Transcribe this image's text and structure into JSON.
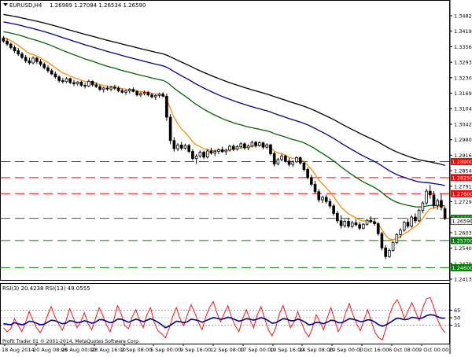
{
  "header": {
    "symbol": "EURUSD,H4",
    "ohlc": "1.26989 1.27084 1.26534 1.26590"
  },
  "rsi_header": {
    "text": "RSI(3) 20.4238  RSI(13) 49.0555"
  },
  "watermark": "Profit Trader 01 © 2001-2014, MetaQuotes Software Corp.",
  "colors": {
    "candle": "#000000",
    "ma_fast": "#FF8C00",
    "ma_mid": "#006400",
    "ma_slow": "#00008B",
    "ma_slowest": "#000000",
    "resistance": "#FF0000",
    "support": "#008000",
    "rsi_fast": "#FF0000",
    "rsi_slow": "#00008B",
    "grid": "#C0C0C0"
  },
  "chart_data": {
    "type": "candlestick",
    "symbol": "EURUSD",
    "timeframe": "H4",
    "ylim": [
      1.24135,
      1.35
    ],
    "price_ticks": [
      "1.34825",
      "1.34190",
      "1.33565",
      "1.32930",
      "1.32300",
      "1.31690",
      "1.31040",
      "1.30425",
      "1.29800",
      "1.29160",
      "1.28540",
      "1.27910",
      "1.27295",
      "1.26660",
      "1.26035",
      "1.25405",
      "1.24790",
      "1.24135"
    ],
    "x_ticks": [
      "18 Aug 2014",
      "20 Aug 08:00",
      "26 Aug 00:00",
      "28 Aug 16:00",
      "2 Sep 08:00",
      "5 Sep 00:00",
      "9 Sep 16:00",
      "12 Sep 08:00",
      "17 Sep 00:00",
      "19 Sep 16:00",
      "24 Sep 08:00",
      "29 Sep 00:00",
      "1 Oct 16:00",
      "6 Oct 08:00",
      "9 Oct 00:00"
    ],
    "horizontal_levels": [
      {
        "price": 1.289,
        "label": "1.28900",
        "color": "#FF0000"
      },
      {
        "price": 1.2825,
        "label": "1.28250",
        "color": "#FF0000"
      },
      {
        "price": 1.276,
        "label": "1.27600",
        "color": "#FF0000"
      },
      {
        "price": 1.266,
        "label": "1.26600",
        "color": "#008000"
      },
      {
        "price": 1.257,
        "label": "1.25700",
        "color": "#008000"
      },
      {
        "price": 1.246,
        "label": "1.24600",
        "color": "#008000"
      }
    ],
    "current_price": {
      "value": 1.2659,
      "label": "1.26590"
    },
    "candles": [
      [
        1.339,
        1.3399,
        1.3371,
        1.3378
      ],
      [
        1.3378,
        1.3389,
        1.3358,
        1.3366
      ],
      [
        1.3366,
        1.3372,
        1.3344,
        1.3352
      ],
      [
        1.3352,
        1.3361,
        1.333,
        1.3339
      ],
      [
        1.3339,
        1.335,
        1.3318,
        1.3326
      ],
      [
        1.3326,
        1.3334,
        1.3305,
        1.3312
      ],
      [
        1.3312,
        1.3322,
        1.329,
        1.3298
      ],
      [
        1.3298,
        1.3311,
        1.3282,
        1.329
      ],
      [
        1.329,
        1.3317,
        1.3284,
        1.3309
      ],
      [
        1.3309,
        1.3314,
        1.3286,
        1.3295
      ],
      [
        1.3295,
        1.3305,
        1.3276,
        1.3284
      ],
      [
        1.3284,
        1.3292,
        1.3263,
        1.327
      ],
      [
        1.327,
        1.328,
        1.325,
        1.3258
      ],
      [
        1.3258,
        1.3266,
        1.324,
        1.3245
      ],
      [
        1.3245,
        1.3254,
        1.3226,
        1.3233
      ],
      [
        1.3233,
        1.324,
        1.321,
        1.3218
      ],
      [
        1.3218,
        1.3229,
        1.3206,
        1.3214
      ],
      [
        1.3214,
        1.3232,
        1.3208,
        1.3226
      ],
      [
        1.3226,
        1.323,
        1.3204,
        1.321
      ],
      [
        1.321,
        1.3221,
        1.3196,
        1.3205
      ],
      [
        1.3205,
        1.3216,
        1.3198,
        1.3212
      ],
      [
        1.3212,
        1.3217,
        1.3193,
        1.3199
      ],
      [
        1.3199,
        1.3209,
        1.3186,
        1.3196
      ],
      [
        1.3196,
        1.3222,
        1.3192,
        1.3215
      ],
      [
        1.3215,
        1.3219,
        1.3194,
        1.3201
      ],
      [
        1.3201,
        1.321,
        1.3188,
        1.3194
      ],
      [
        1.3194,
        1.3201,
        1.3176,
        1.3182
      ],
      [
        1.3182,
        1.3193,
        1.317,
        1.3188
      ],
      [
        1.3188,
        1.3198,
        1.3176,
        1.3184
      ],
      [
        1.3184,
        1.3196,
        1.3175,
        1.3191
      ],
      [
        1.3191,
        1.3201,
        1.318,
        1.3187
      ],
      [
        1.3187,
        1.3195,
        1.3171,
        1.3177
      ],
      [
        1.3177,
        1.3186,
        1.3165,
        1.3171
      ],
      [
        1.3171,
        1.3182,
        1.316,
        1.3176
      ],
      [
        1.3176,
        1.3188,
        1.3166,
        1.3182
      ],
      [
        1.3182,
        1.319,
        1.317,
        1.3174
      ],
      [
        1.3174,
        1.318,
        1.3154,
        1.316
      ],
      [
        1.316,
        1.3172,
        1.3151,
        1.3166
      ],
      [
        1.3166,
        1.3178,
        1.3158,
        1.317
      ],
      [
        1.317,
        1.3176,
        1.3154,
        1.316
      ],
      [
        1.316,
        1.3168,
        1.3146,
        1.3152
      ],
      [
        1.3152,
        1.3163,
        1.314,
        1.3157
      ],
      [
        1.3157,
        1.3168,
        1.3148,
        1.3163
      ],
      [
        1.3163,
        1.3171,
        1.315,
        1.3155
      ],
      [
        1.3155,
        1.3165,
        1.3055,
        1.307
      ],
      [
        1.307,
        1.3082,
        1.296,
        1.2975
      ],
      [
        1.2975,
        1.2988,
        1.293,
        1.2942
      ],
      [
        1.2942,
        1.2965,
        1.2932,
        1.2957
      ],
      [
        1.2957,
        1.297,
        1.2935,
        1.2944
      ],
      [
        1.2944,
        1.2962,
        1.2938,
        1.2955
      ],
      [
        1.2955,
        1.2961,
        1.2925,
        1.2931
      ],
      [
        1.2931,
        1.294,
        1.2895,
        1.2902
      ],
      [
        1.2902,
        1.292,
        1.288,
        1.2912
      ],
      [
        1.2912,
        1.2935,
        1.2905,
        1.2928
      ],
      [
        1.2928,
        1.2934,
        1.29,
        1.2908
      ],
      [
        1.2908,
        1.294,
        1.2902,
        1.2933
      ],
      [
        1.2933,
        1.2946,
        1.2918,
        1.2924
      ],
      [
        1.2924,
        1.2938,
        1.2912,
        1.2931
      ],
      [
        1.2931,
        1.2944,
        1.292,
        1.2938
      ],
      [
        1.2938,
        1.295,
        1.2925,
        1.293
      ],
      [
        1.293,
        1.2942,
        1.2917,
        1.2936
      ],
      [
        1.2936,
        1.2958,
        1.293,
        1.2952
      ],
      [
        1.2952,
        1.296,
        1.2932,
        1.294
      ],
      [
        1.294,
        1.2957,
        1.2934,
        1.295
      ],
      [
        1.295,
        1.2969,
        1.2942,
        1.2962
      ],
      [
        1.2962,
        1.2968,
        1.2938,
        1.2946
      ],
      [
        1.2946,
        1.296,
        1.2936,
        1.2953
      ],
      [
        1.2953,
        1.2975,
        1.2947,
        1.2968
      ],
      [
        1.2968,
        1.2974,
        1.2947,
        1.2955
      ],
      [
        1.2955,
        1.2972,
        1.295,
        1.2966
      ],
      [
        1.2966,
        1.297,
        1.294,
        1.2948
      ],
      [
        1.2948,
        1.2964,
        1.2942,
        1.2958
      ],
      [
        1.2958,
        1.2961,
        1.2915,
        1.2922
      ],
      [
        1.2922,
        1.293,
        1.287,
        1.288
      ],
      [
        1.288,
        1.2905,
        1.2875,
        1.2898
      ],
      [
        1.2898,
        1.292,
        1.289,
        1.2912
      ],
      [
        1.2912,
        1.2918,
        1.2885,
        1.2892
      ],
      [
        1.2892,
        1.2905,
        1.287,
        1.2878
      ],
      [
        1.2878,
        1.2895,
        1.2868,
        1.2889
      ],
      [
        1.2889,
        1.2912,
        1.2884,
        1.2906
      ],
      [
        1.2906,
        1.291,
        1.2878,
        1.2884
      ],
      [
        1.2884,
        1.289,
        1.285,
        1.2858
      ],
      [
        1.2858,
        1.2866,
        1.2818,
        1.2825
      ],
      [
        1.2825,
        1.2836,
        1.279,
        1.2798
      ],
      [
        1.2798,
        1.2812,
        1.276,
        1.2768
      ],
      [
        1.2768,
        1.2778,
        1.2725,
        1.2735
      ],
      [
        1.2735,
        1.2752,
        1.2722,
        1.2745
      ],
      [
        1.2745,
        1.2756,
        1.272,
        1.2728
      ],
      [
        1.2728,
        1.274,
        1.27,
        1.271
      ],
      [
        1.271,
        1.2718,
        1.267,
        1.268
      ],
      [
        1.268,
        1.269,
        1.264,
        1.265
      ],
      [
        1.265,
        1.2672,
        1.2618,
        1.263
      ],
      [
        1.263,
        1.2655,
        1.2622,
        1.2648
      ],
      [
        1.2648,
        1.266,
        1.262,
        1.2628
      ],
      [
        1.2628,
        1.265,
        1.262,
        1.2642
      ],
      [
        1.2642,
        1.2655,
        1.2628,
        1.2634
      ],
      [
        1.2634,
        1.2645,
        1.2612,
        1.262
      ],
      [
        1.262,
        1.264,
        1.2615,
        1.2636
      ],
      [
        1.2636,
        1.2658,
        1.263,
        1.2652
      ],
      [
        1.2652,
        1.2668,
        1.264,
        1.2646
      ],
      [
        1.2646,
        1.266,
        1.263,
        1.2638
      ],
      [
        1.2638,
        1.2645,
        1.259,
        1.2598
      ],
      [
        1.2598,
        1.2605,
        1.253,
        1.254
      ],
      [
        1.254,
        1.2552,
        1.2495,
        1.2505
      ],
      [
        1.2505,
        1.2538,
        1.25,
        1.253
      ],
      [
        1.253,
        1.2568,
        1.2525,
        1.2562
      ],
      [
        1.2562,
        1.26,
        1.2555,
        1.2594
      ],
      [
        1.2594,
        1.262,
        1.258,
        1.2612
      ],
      [
        1.2612,
        1.265,
        1.2605,
        1.2644
      ],
      [
        1.2644,
        1.266,
        1.262,
        1.2628
      ],
      [
        1.2628,
        1.2672,
        1.2622,
        1.2665
      ],
      [
        1.2665,
        1.268,
        1.264,
        1.265
      ],
      [
        1.265,
        1.27,
        1.2645,
        1.2692
      ],
      [
        1.2692,
        1.273,
        1.268,
        1.2722
      ],
      [
        1.2722,
        1.278,
        1.2715,
        1.277
      ],
      [
        1.277,
        1.2795,
        1.274,
        1.2755
      ],
      [
        1.2755,
        1.277,
        1.27,
        1.2712
      ],
      [
        1.2712,
        1.274,
        1.2695,
        1.2732
      ],
      [
        1.2732,
        1.276,
        1.2692,
        1.2705
      ],
      [
        1.2699,
        1.2708,
        1.2653,
        1.2659
      ]
    ],
    "rsi": {
      "ylim": [
        0,
        100
      ],
      "levels": [
        65,
        50,
        35
      ],
      "series": [
        {
          "name": "RSI(3)",
          "values": [
            30,
            22,
            28,
            48,
            35,
            22,
            40,
            62,
            45,
            30,
            20,
            34,
            55,
            72,
            52,
            38,
            25,
            44,
            68,
            50,
            30,
            42,
            60,
            38,
            26,
            48,
            70,
            55,
            36,
            22,
            46,
            74,
            58,
            34,
            28,
            52,
            66,
            44,
            30,
            56,
            70,
            40,
            24,
            18,
            10,
            28,
            52,
            70,
            48,
            34,
            56,
            76,
            60,
            40,
            26,
            52,
            70,
            82,
            60,
            42,
            58,
            74,
            50,
            34,
            22,
            48,
            66,
            46,
            30,
            56,
            72,
            48,
            26,
            14,
            30,
            58,
            74,
            52,
            30,
            42,
            62,
            40,
            22,
            12,
            30,
            56,
            42,
            26,
            50,
            70,
            46,
            22,
            36,
            60,
            78,
            56,
            38,
            24,
            46,
            66,
            42,
            20,
            10,
            6,
            30,
            58,
            76,
            86,
            70,
            48,
            64,
            80,
            62,
            44,
            70,
            88,
            90,
            70,
            46,
            30,
            20
          ]
        },
        {
          "name": "RSI(13)",
          "values": [
            38,
            37,
            36,
            40,
            38,
            36,
            38,
            43,
            42,
            39,
            36,
            37,
            41,
            45,
            44,
            41,
            38,
            39,
            44,
            43,
            40,
            41,
            44,
            42,
            39,
            41,
            46,
            46,
            43,
            40,
            42,
            47,
            47,
            44,
            41,
            44,
            47,
            45,
            42,
            45,
            48,
            45,
            41,
            36,
            30,
            33,
            38,
            43,
            42,
            40,
            42,
            47,
            46,
            44,
            41,
            44,
            47,
            50,
            49,
            47,
            48,
            51,
            49,
            46,
            43,
            45,
            48,
            47,
            45,
            47,
            50,
            48,
            44,
            39,
            40,
            44,
            48,
            47,
            44,
            44,
            47,
            45,
            41,
            36,
            37,
            41,
            40,
            38,
            41,
            45,
            44,
            40,
            40,
            44,
            48,
            47,
            45,
            42,
            43,
            46,
            45,
            41,
            36,
            33,
            36,
            40,
            45,
            49,
            48,
            46,
            47,
            51,
            50,
            48,
            50,
            54,
            56,
            55,
            52,
            49,
            49
          ]
        }
      ]
    }
  }
}
